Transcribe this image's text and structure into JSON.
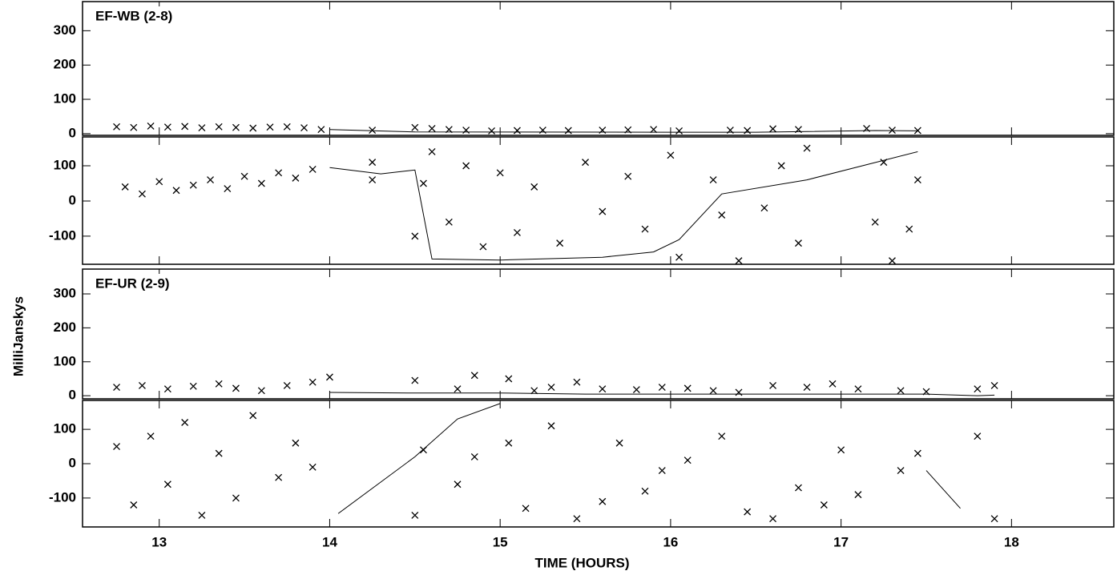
{
  "ylabel": "MilliJanskys",
  "chart_data": [
    {
      "type": "scatter",
      "label": "EF-WB (2-8)",
      "xlim": [
        12.55,
        18.6
      ],
      "ylim": [
        -5,
        385
      ],
      "xticks": [
        13,
        14,
        15,
        16,
        17,
        18
      ],
      "yticks": [
        0,
        100,
        200,
        300
      ],
      "xticklabels": false,
      "series": [
        {
          "marker": "x",
          "color": "#000000",
          "x": [
            12.75,
            12.85,
            12.95,
            13.05,
            13.15,
            13.25,
            13.35,
            13.45,
            13.55,
            13.65,
            13.75,
            13.85,
            13.95,
            14.25,
            14.5,
            14.6,
            14.7,
            14.8,
            14.95,
            15.1,
            15.25,
            15.4,
            15.6,
            15.75,
            15.9,
            16.05,
            16.35,
            16.45,
            16.6,
            16.75,
            17.15,
            17.3,
            17.45
          ],
          "values": [
            20,
            18,
            22,
            19,
            21,
            17,
            20,
            18,
            16,
            19,
            20,
            17,
            12,
            10,
            18,
            15,
            12,
            10,
            8,
            9,
            10,
            9,
            10,
            11,
            12,
            8,
            10,
            9,
            14,
            12,
            15,
            10,
            9
          ]
        },
        {
          "marker": "line",
          "color": "#000000",
          "x": [
            14.0,
            14.5,
            16.0,
            16.5,
            17.2,
            17.45
          ],
          "values": [
            12,
            5,
            4,
            4,
            9,
            8
          ]
        }
      ]
    },
    {
      "type": "scatter",
      "xlim": [
        12.55,
        18.6
      ],
      "ylim": [
        -180,
        182
      ],
      "xticks": [
        13,
        14,
        15,
        16,
        17,
        18
      ],
      "yticks": [
        -100,
        0,
        100
      ],
      "xticklabels": false,
      "series": [
        {
          "marker": "x",
          "color": "#000000",
          "x": [
            12.8,
            12.9,
            13.0,
            13.1,
            13.2,
            13.3,
            13.4,
            13.5,
            13.6,
            13.7,
            13.8,
            13.9,
            14.25,
            14.25,
            14.5,
            14.55,
            14.6,
            14.7,
            14.8,
            14.9,
            15.0,
            15.1,
            15.2,
            15.35,
            15.5,
            15.6,
            15.75,
            15.85,
            16.0,
            16.05,
            16.25,
            16.3,
            16.4,
            16.55,
            16.65,
            16.75,
            16.8,
            17.2,
            17.25,
            17.3,
            17.4,
            17.45
          ],
          "values": [
            40,
            20,
            55,
            30,
            45,
            60,
            35,
            70,
            50,
            80,
            65,
            90,
            60,
            110,
            -100,
            50,
            140,
            -60,
            100,
            -130,
            80,
            -90,
            40,
            -120,
            110,
            -30,
            70,
            -80,
            130,
            -160,
            60,
            -40,
            -170,
            -20,
            100,
            -120,
            150,
            -60,
            110,
            -170,
            -80,
            60
          ]
        },
        {
          "marker": "line",
          "color": "#000000",
          "x": [
            14.0,
            14.3,
            14.5,
            14.6,
            15.0,
            15.6,
            15.9,
            16.05,
            16.3,
            16.8,
            17.45
          ],
          "values": [
            95,
            77,
            88,
            -165,
            -168,
            -160,
            -145,
            -110,
            20,
            60,
            140
          ]
        }
      ]
    },
    {
      "type": "scatter",
      "label": "EF-UR (2-9)",
      "xlim": [
        12.55,
        18.6
      ],
      "ylim": [
        -9,
        373
      ],
      "xticks": [
        13,
        14,
        15,
        16,
        17,
        18
      ],
      "yticks": [
        0,
        100,
        200,
        300
      ],
      "xticklabels": false,
      "series": [
        {
          "marker": "x",
          "color": "#000000",
          "x": [
            12.75,
            12.9,
            13.05,
            13.2,
            13.35,
            13.45,
            13.6,
            13.75,
            13.9,
            14.0,
            14.5,
            14.75,
            14.85,
            15.05,
            15.2,
            15.3,
            15.45,
            15.6,
            15.8,
            15.95,
            16.1,
            16.25,
            16.4,
            16.6,
            16.8,
            16.95,
            17.1,
            17.35,
            17.5,
            17.8,
            17.9
          ],
          "values": [
            25,
            30,
            20,
            28,
            35,
            22,
            15,
            30,
            40,
            55,
            45,
            20,
            60,
            50,
            15,
            25,
            40,
            20,
            18,
            25,
            22,
            15,
            10,
            30,
            25,
            35,
            20,
            15,
            12,
            20,
            30
          ]
        },
        {
          "marker": "line",
          "color": "#000000",
          "x": [
            14.0,
            14.5,
            15.0,
            15.5,
            16.0,
            16.5,
            17.0,
            17.5,
            17.8,
            17.9
          ],
          "values": [
            10,
            8,
            8,
            5,
            5,
            5,
            5,
            5,
            0,
            2
          ]
        }
      ]
    },
    {
      "type": "scatter",
      "xlabel": "TIME (HOURS)",
      "xlim": [
        12.55,
        18.6
      ],
      "ylim": [
        -184,
        184
      ],
      "xticks": [
        13,
        14,
        15,
        16,
        17,
        18
      ],
      "yticks": [
        -100,
        0,
        100
      ],
      "xticklabels": true,
      "series": [
        {
          "marker": "x",
          "color": "#000000",
          "x": [
            12.75,
            12.85,
            12.95,
            13.05,
            13.15,
            13.25,
            13.35,
            13.45,
            13.55,
            13.7,
            13.8,
            13.9,
            14.5,
            14.55,
            14.75,
            14.85,
            15.05,
            15.15,
            15.3,
            15.45,
            15.6,
            15.7,
            15.85,
            15.95,
            16.1,
            16.3,
            16.45,
            16.6,
            16.75,
            16.9,
            17.0,
            17.1,
            17.35,
            17.45,
            17.8,
            17.9
          ],
          "values": [
            50,
            -120,
            80,
            -60,
            120,
            -150,
            30,
            -100,
            140,
            -40,
            60,
            -10,
            -150,
            40,
            -60,
            20,
            60,
            -130,
            110,
            -160,
            -110,
            60,
            -80,
            -20,
            10,
            80,
            -140,
            -160,
            -70,
            -120,
            40,
            -90,
            -20,
            30,
            80,
            -160
          ]
        },
        {
          "marker": "line",
          "color": "#000000",
          "x": [
            14.05,
            14.5,
            14.75,
            15.0,
            null,
            17.5,
            17.7
          ],
          "values": [
            -145,
            20,
            130,
            175,
            null,
            -20,
            -130
          ]
        }
      ]
    }
  ]
}
